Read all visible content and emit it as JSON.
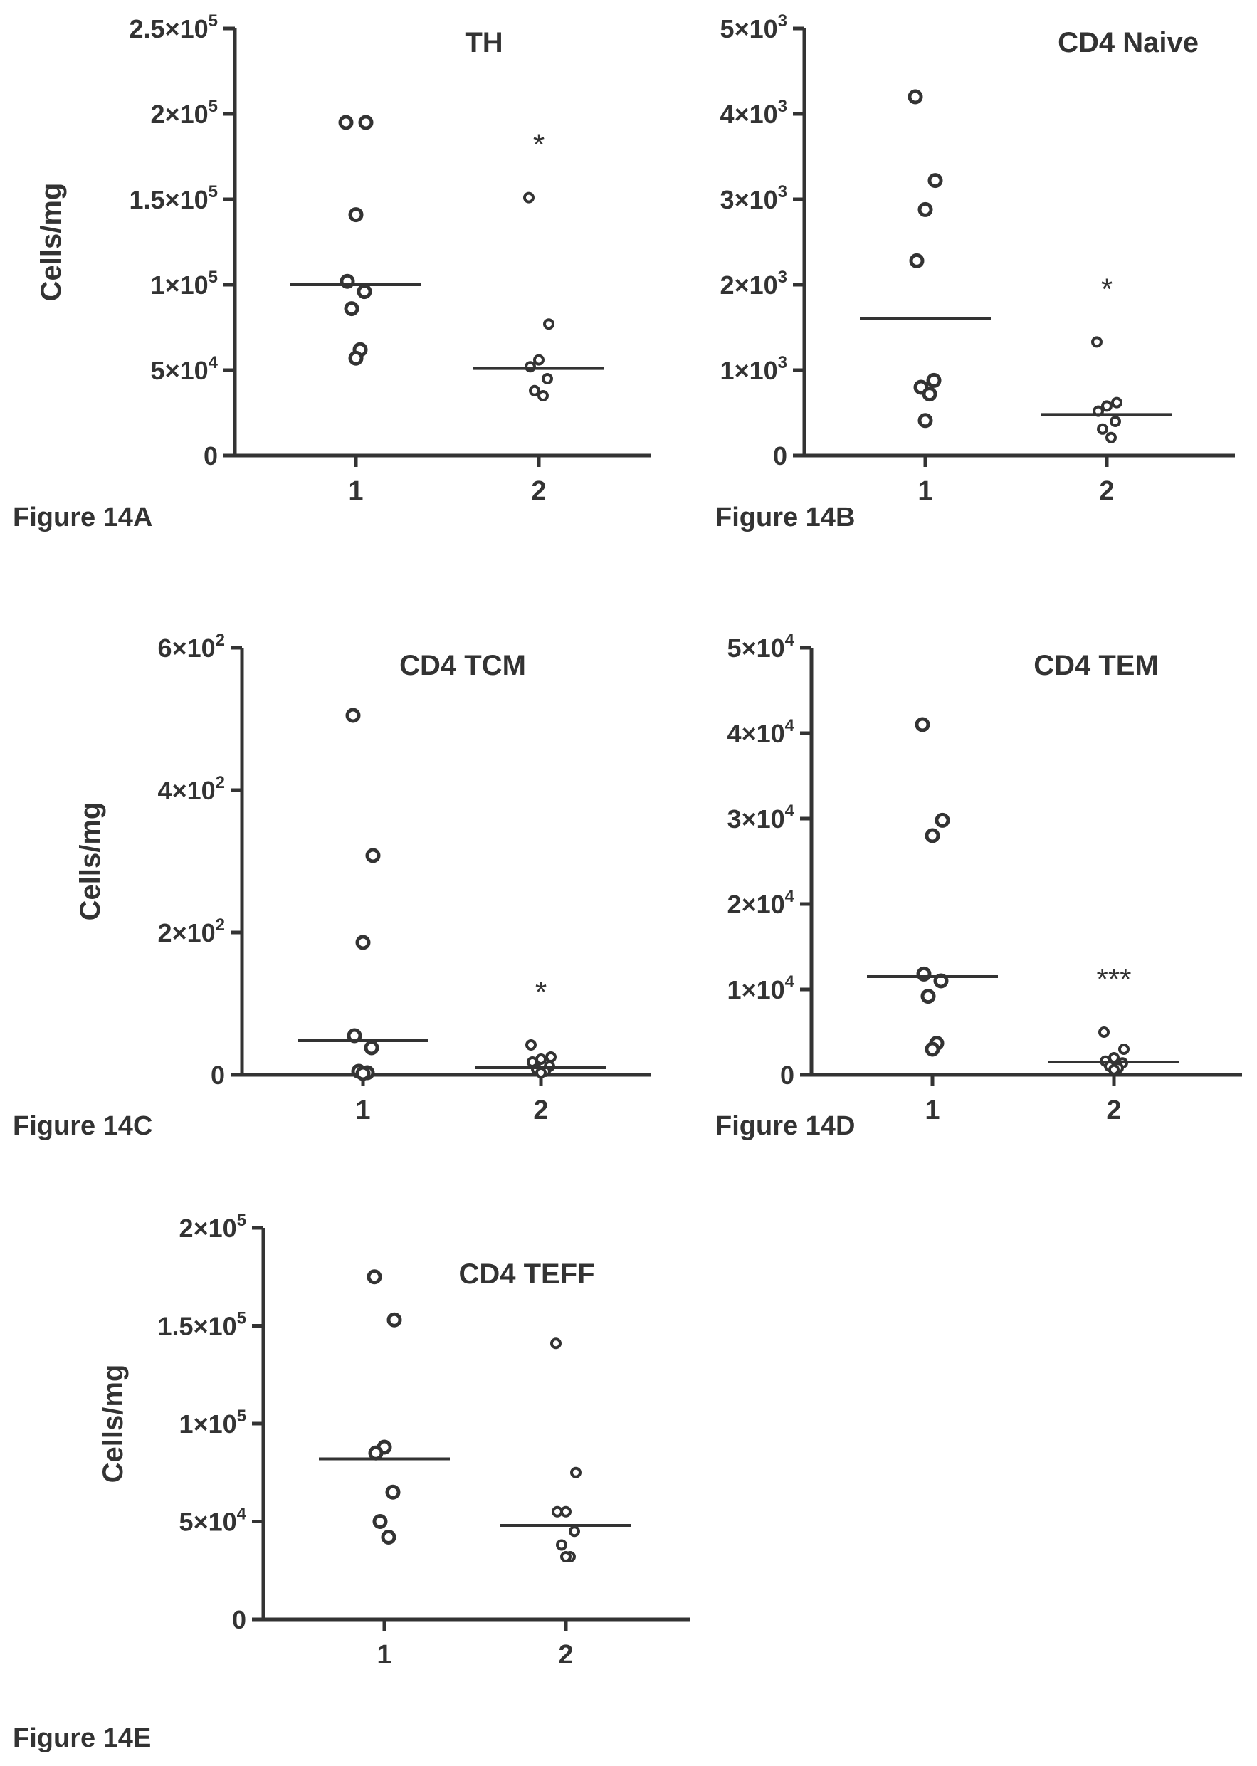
{
  "colors": {
    "ink": "#333333",
    "background": "#ffffff"
  },
  "chart_data": [
    {
      "id": "14A",
      "figure_label": "Figure 14A",
      "type": "scatter",
      "title": "TH",
      "ylabel": "Cells/mg",
      "xlabel": "",
      "ylim": [
        0,
        250000
      ],
      "yticks": [
        0,
        50000,
        100000,
        150000,
        200000,
        250000
      ],
      "ytick_labels": [
        {
          "mant": "0",
          "exp": ""
        },
        {
          "mant": "5×10",
          "exp": "4"
        },
        {
          "mant": "1×10",
          "exp": "5"
        },
        {
          "mant": "1.5×10",
          "exp": "5"
        },
        {
          "mant": "2×10",
          "exp": "5"
        },
        {
          "mant": "2.5×10",
          "exp": "5"
        }
      ],
      "categories": [
        "1",
        "2"
      ],
      "series": [
        {
          "values": [
            195000,
            195000,
            141000,
            102000,
            96000,
            86000,
            62000,
            57000
          ],
          "median": 100000,
          "marker": "open",
          "sig": ""
        },
        {
          "values": [
            151000,
            77000,
            56000,
            52000,
            45000,
            38000,
            35000
          ],
          "median": 51000,
          "marker": "small",
          "sig": "*"
        }
      ]
    },
    {
      "id": "14B",
      "figure_label": "Figure 14B",
      "type": "scatter",
      "title": "CD4 Naive",
      "ylabel": "",
      "xlabel": "",
      "ylim": [
        0,
        5000
      ],
      "yticks": [
        0,
        1000,
        2000,
        3000,
        4000,
        5000
      ],
      "ytick_labels": [
        {
          "mant": "0",
          "exp": ""
        },
        {
          "mant": "1×10",
          "exp": "3"
        },
        {
          "mant": "2×10",
          "exp": "3"
        },
        {
          "mant": "3×10",
          "exp": "3"
        },
        {
          "mant": "4×10",
          "exp": "3"
        },
        {
          "mant": "5×10",
          "exp": "3"
        }
      ],
      "categories": [
        "1",
        "2"
      ],
      "series": [
        {
          "values": [
            4200,
            3220,
            2880,
            2280,
            880,
            800,
            720,
            410
          ],
          "median": 1600,
          "marker": "open",
          "sig": ""
        },
        {
          "values": [
            1330,
            620,
            580,
            520,
            400,
            310,
            210
          ],
          "median": 480,
          "marker": "small",
          "sig": "*"
        }
      ]
    },
    {
      "id": "14C",
      "figure_label": "Figure 14C",
      "type": "scatter",
      "title": "CD4 TCM",
      "ylabel": "Cells/mg",
      "xlabel": "",
      "ylim": [
        0,
        600
      ],
      "yticks": [
        0,
        200,
        400,
        600
      ],
      "ytick_labels": [
        {
          "mant": "0",
          "exp": ""
        },
        {
          "mant": "2×10",
          "exp": "2"
        },
        {
          "mant": "4×10",
          "exp": "2"
        },
        {
          "mant": "6×10",
          "exp": "2"
        }
      ],
      "categories": [
        "1",
        "2"
      ],
      "series": [
        {
          "values": [
            505,
            308,
            186,
            55,
            38,
            5,
            3,
            2
          ],
          "median": 48,
          "marker": "open",
          "sig": ""
        },
        {
          "values": [
            42,
            25,
            22,
            18,
            12,
            8,
            5,
            3
          ],
          "median": 10,
          "marker": "small",
          "sig": "*"
        }
      ]
    },
    {
      "id": "14D",
      "figure_label": "Figure 14D",
      "type": "scatter",
      "title": "CD4 TEM",
      "ylabel": "",
      "xlabel": "",
      "ylim": [
        0,
        50000
      ],
      "yticks": [
        0,
        10000,
        20000,
        30000,
        40000,
        50000
      ],
      "ytick_labels": [
        {
          "mant": "0",
          "exp": ""
        },
        {
          "mant": "1×10",
          "exp": "4"
        },
        {
          "mant": "2×10",
          "exp": "4"
        },
        {
          "mant": "3×10",
          "exp": "4"
        },
        {
          "mant": "4×10",
          "exp": "4"
        },
        {
          "mant": "5×10",
          "exp": "4"
        }
      ],
      "categories": [
        "1",
        "2"
      ],
      "series": [
        {
          "values": [
            41000,
            29800,
            28000,
            11800,
            11000,
            9200,
            3700,
            3000
          ],
          "median": 11500,
          "marker": "open",
          "sig": ""
        },
        {
          "values": [
            5000,
            3000,
            2000,
            1600,
            1400,
            1000,
            800,
            600
          ],
          "median": 1500,
          "marker": "small",
          "sig": "***"
        }
      ]
    },
    {
      "id": "14E",
      "figure_label": "Figure 14E",
      "type": "scatter",
      "title": "CD4 TEFF",
      "ylabel": "Cells/mg",
      "xlabel": "",
      "ylim": [
        0,
        200000
      ],
      "yticks": [
        0,
        50000,
        100000,
        150000,
        200000
      ],
      "ytick_labels": [
        {
          "mant": "0",
          "exp": ""
        },
        {
          "mant": "5×10",
          "exp": "4"
        },
        {
          "mant": "1×10",
          "exp": "5"
        },
        {
          "mant": "1.5×10",
          "exp": "5"
        },
        {
          "mant": "2×10",
          "exp": "5"
        }
      ],
      "categories": [
        "1",
        "2"
      ],
      "series": [
        {
          "values": [
            175000,
            153000,
            88000,
            85000,
            65000,
            50000,
            42000
          ],
          "median": 82000,
          "marker": "open",
          "sig": ""
        },
        {
          "values": [
            141000,
            75000,
            55000,
            55000,
            45000,
            38000,
            32000,
            32000
          ],
          "median": 48000,
          "marker": "small",
          "sig": ""
        }
      ]
    }
  ]
}
